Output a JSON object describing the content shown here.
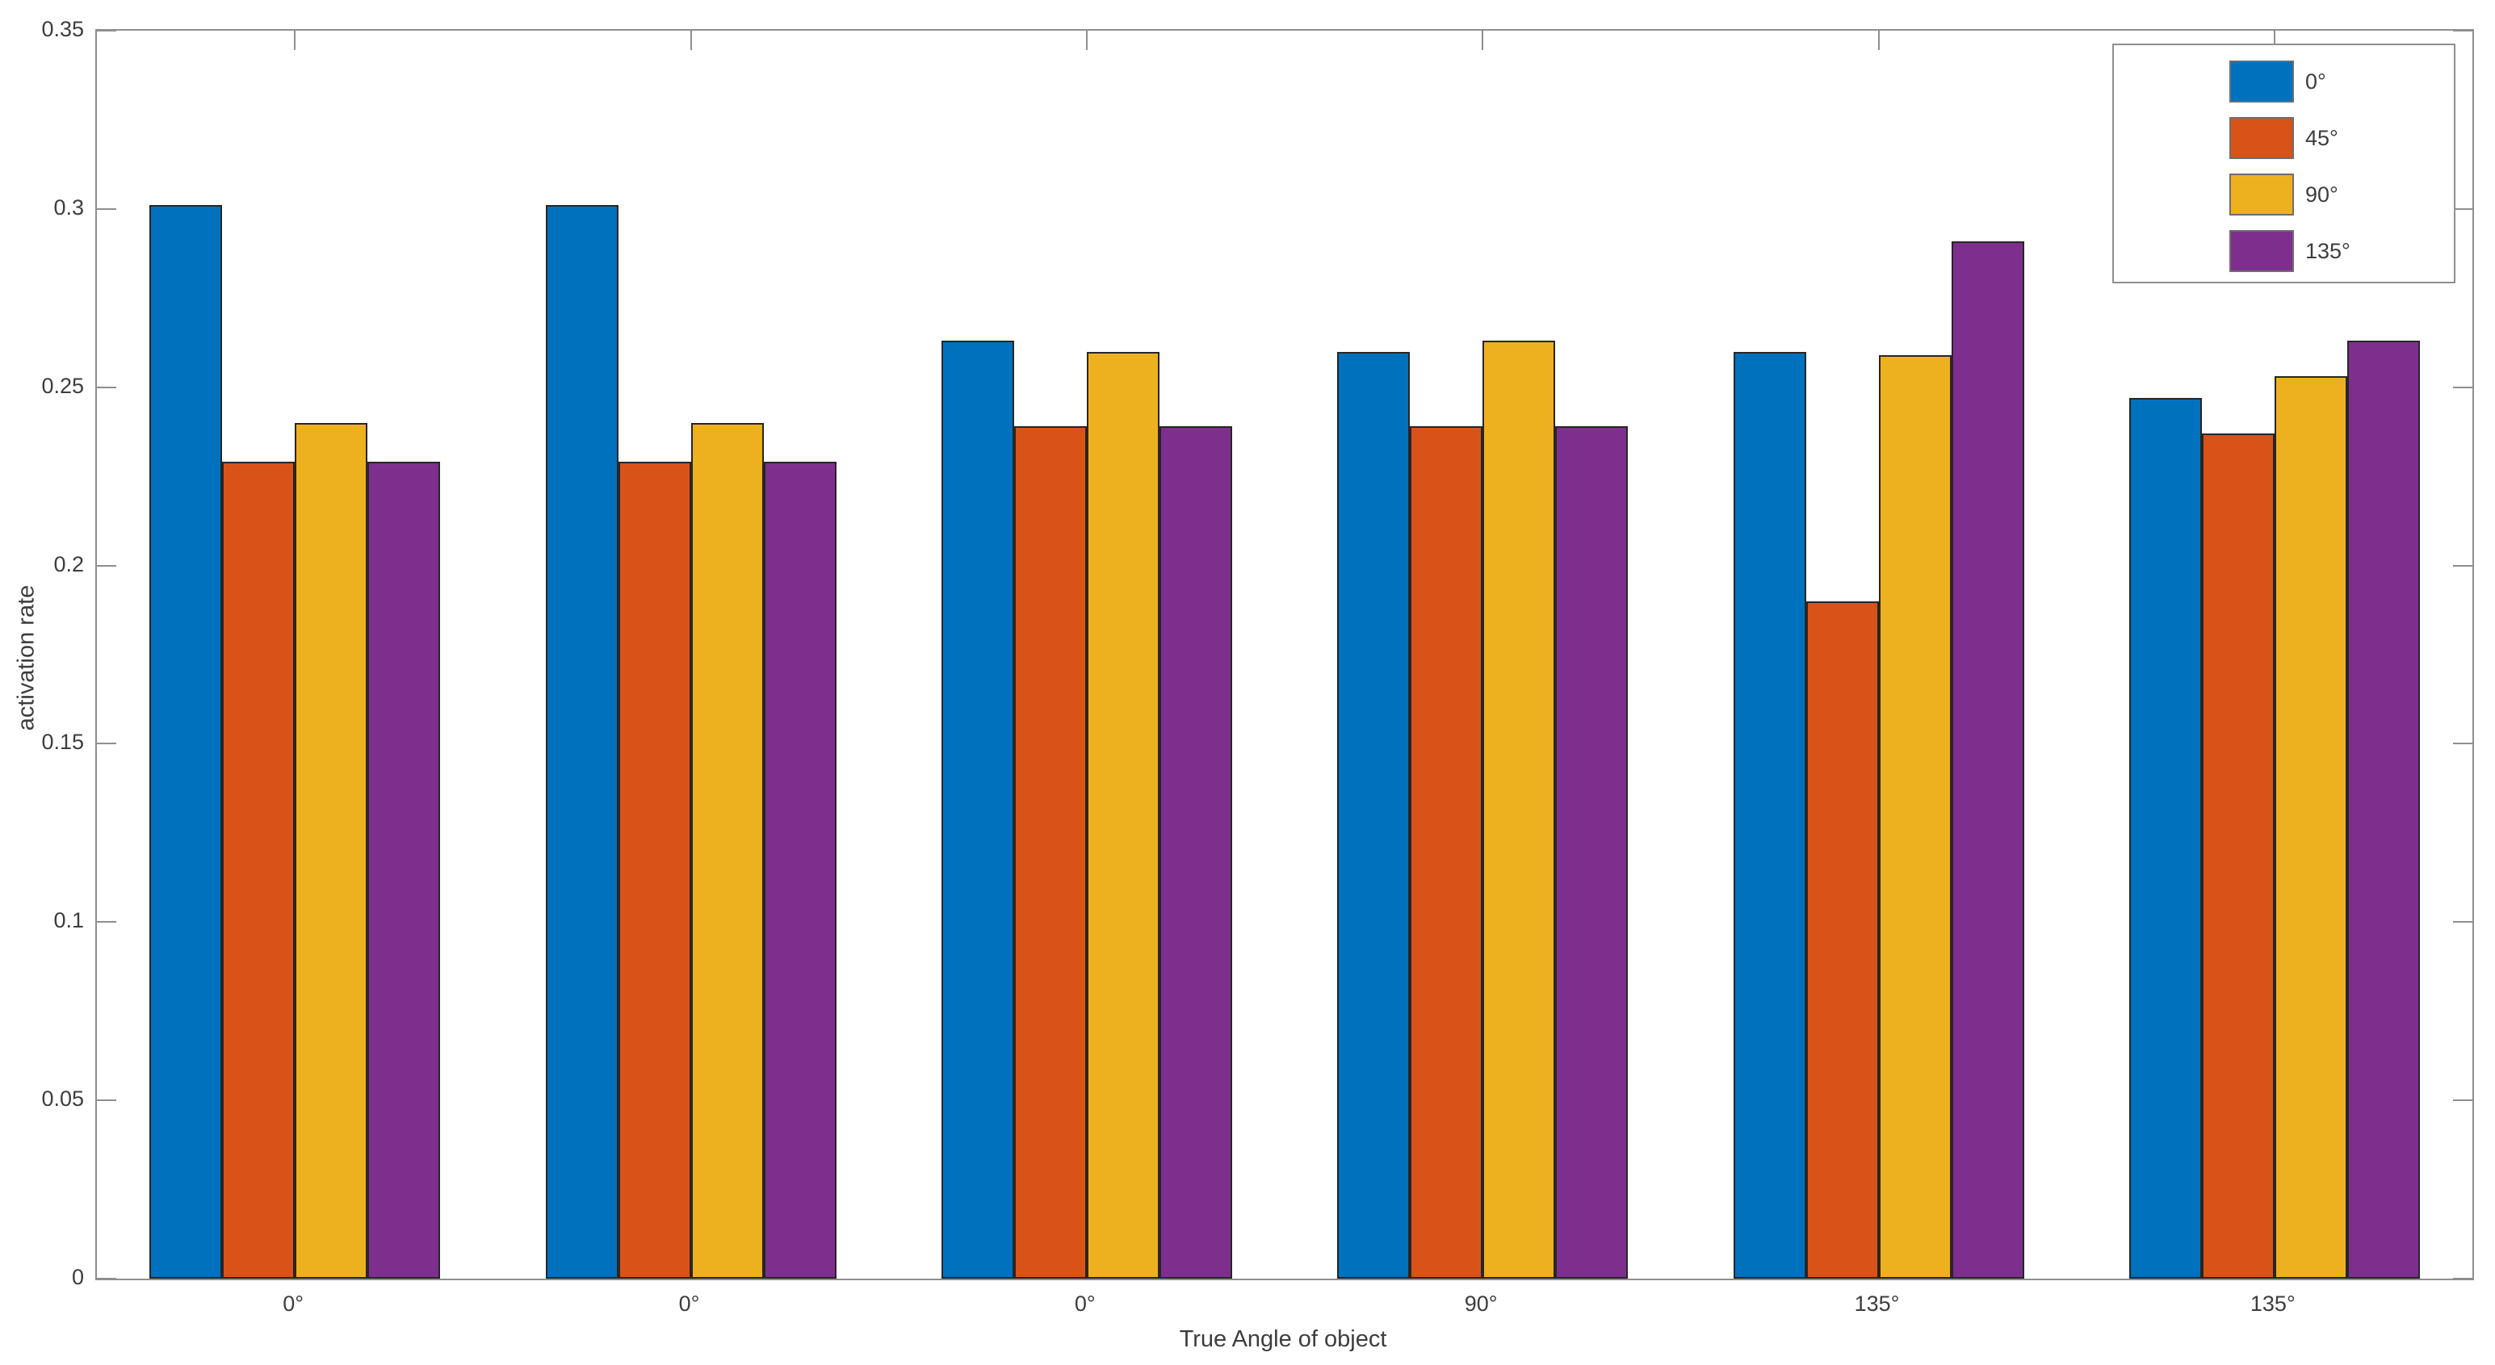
{
  "figure": {
    "background": "#ffffff",
    "axis_color": "#8f8f8f",
    "text_color": "#3d3d3d",
    "bar_edge_color": "#262626"
  },
  "chart_data": {
    "type": "bar",
    "title": "",
    "xlabel": "True Angle of object",
    "ylabel": "activation rate",
    "ylim": [
      0,
      0.35
    ],
    "yticks": [
      0,
      0.05,
      0.1,
      0.15,
      0.2,
      0.25,
      0.3,
      0.35
    ],
    "ytick_labels": [
      "0",
      "0.05",
      "0.1",
      "0.15",
      "0.2",
      "0.25",
      "0.3",
      "0.35"
    ],
    "categories": [
      "0°",
      "0°",
      "0°",
      "90°",
      "135°",
      "135°"
    ],
    "series": [
      {
        "name": "0°",
        "color": "#0072BD",
        "values": [
          0.301,
          0.301,
          0.263,
          0.26,
          0.26,
          0.247
        ]
      },
      {
        "name": "45°",
        "color": "#D95319",
        "values": [
          0.229,
          0.229,
          0.239,
          0.239,
          0.19,
          0.237
        ]
      },
      {
        "name": "90°",
        "color": "#EDB120",
        "values": [
          0.24,
          0.24,
          0.26,
          0.263,
          0.259,
          0.253
        ]
      },
      {
        "name": "135°",
        "color": "#7E2F8E",
        "values": [
          0.229,
          0.229,
          0.239,
          0.239,
          0.291,
          0.263
        ]
      }
    ],
    "legend": {
      "position": "northeast",
      "entries": [
        "0°",
        "45°",
        "90°",
        "135°"
      ]
    },
    "grid": false
  }
}
